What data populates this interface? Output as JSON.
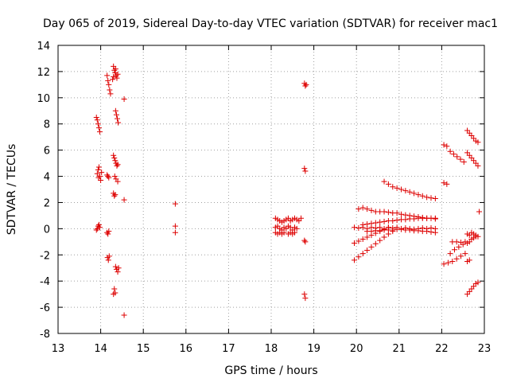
{
  "chart_data": {
    "type": "scatter",
    "title": "Day 065 of 2019, Sidereal Day-to-day VTEC variation (SDTVAR) for receiver mac1",
    "xlabel": "GPS time / hours",
    "ylabel": "SDTVAR / TECUs",
    "xlim": [
      13,
      23
    ],
    "ylim": [
      -8,
      14
    ],
    "xticks": [
      13,
      14,
      15,
      16,
      17,
      18,
      19,
      20,
      21,
      22,
      23
    ],
    "yticks": [
      -8,
      -6,
      -4,
      -2,
      0,
      2,
      4,
      6,
      8,
      10,
      12,
      14
    ],
    "grid": true,
    "marker": "+",
    "marker_color": "#dd0000",
    "series": [
      {
        "name": "SDTVAR",
        "points": [
          [
            13.9,
            8.5
          ],
          [
            13.92,
            8.3
          ],
          [
            13.94,
            8.0
          ],
          [
            13.96,
            7.7
          ],
          [
            13.98,
            7.4
          ],
          [
            13.92,
            4.2
          ],
          [
            13.94,
            4.5
          ],
          [
            13.96,
            4.7
          ],
          [
            13.98,
            4.0
          ],
          [
            14.0,
            3.7
          ],
          [
            13.95,
            3.9
          ],
          [
            14.02,
            4.3
          ],
          [
            13.9,
            -0.1
          ],
          [
            13.92,
            0.0
          ],
          [
            13.94,
            0.2
          ],
          [
            13.96,
            0.3
          ],
          [
            13.98,
            0.1
          ],
          [
            14.15,
            11.7
          ],
          [
            14.17,
            11.3
          ],
          [
            14.19,
            11.0
          ],
          [
            14.21,
            10.6
          ],
          [
            14.23,
            10.3
          ],
          [
            14.15,
            4.1
          ],
          [
            14.17,
            4.0
          ],
          [
            14.19,
            3.9
          ],
          [
            14.15,
            -0.3
          ],
          [
            14.17,
            -0.4
          ],
          [
            14.19,
            -0.2
          ],
          [
            14.16,
            -2.2
          ],
          [
            14.18,
            -2.4
          ],
          [
            14.2,
            -2.1
          ],
          [
            14.3,
            12.4
          ],
          [
            14.32,
            12.1
          ],
          [
            14.34,
            11.9
          ],
          [
            14.36,
            11.7
          ],
          [
            14.38,
            11.5
          ],
          [
            14.4,
            11.8
          ],
          [
            14.3,
            11.6
          ],
          [
            14.35,
            12.2
          ],
          [
            14.28,
            11.4
          ],
          [
            14.35,
            9.0
          ],
          [
            14.37,
            8.7
          ],
          [
            14.39,
            8.4
          ],
          [
            14.41,
            8.1
          ],
          [
            14.3,
            5.6
          ],
          [
            14.32,
            5.4
          ],
          [
            14.34,
            5.2
          ],
          [
            14.36,
            5.0
          ],
          [
            14.38,
            4.8
          ],
          [
            14.4,
            4.9
          ],
          [
            14.33,
            4.0
          ],
          [
            14.36,
            3.8
          ],
          [
            14.4,
            3.6
          ],
          [
            14.3,
            2.7
          ],
          [
            14.32,
            2.5
          ],
          [
            14.34,
            2.6
          ],
          [
            14.35,
            -2.9
          ],
          [
            14.37,
            -3.1
          ],
          [
            14.4,
            -3.3
          ],
          [
            14.42,
            -3.0
          ],
          [
            14.32,
            -4.6
          ],
          [
            14.34,
            -4.9
          ],
          [
            14.3,
            -5.0
          ],
          [
            14.55,
            9.9
          ],
          [
            14.55,
            2.2
          ],
          [
            14.55,
            -6.6
          ],
          [
            15.75,
            1.9
          ],
          [
            15.75,
            0.2
          ],
          [
            15.75,
            -0.3
          ],
          [
            18.1,
            0.8
          ],
          [
            18.15,
            0.7
          ],
          [
            18.2,
            0.6
          ],
          [
            18.25,
            0.5
          ],
          [
            18.3,
            0.6
          ],
          [
            18.35,
            0.7
          ],
          [
            18.4,
            0.8
          ],
          [
            18.45,
            0.6
          ],
          [
            18.5,
            0.7
          ],
          [
            18.55,
            0.8
          ],
          [
            18.6,
            0.7
          ],
          [
            18.65,
            0.6
          ],
          [
            18.7,
            0.8
          ],
          [
            18.1,
            0.1
          ],
          [
            18.15,
            0.2
          ],
          [
            18.2,
            0.0
          ],
          [
            18.25,
            -0.1
          ],
          [
            18.3,
            0.1
          ],
          [
            18.35,
            0.0
          ],
          [
            18.4,
            0.2
          ],
          [
            18.45,
            0.1
          ],
          [
            18.5,
            -0.1
          ],
          [
            18.55,
            0.1
          ],
          [
            18.6,
            0.0
          ],
          [
            18.1,
            -0.3
          ],
          [
            18.15,
            -0.4
          ],
          [
            18.2,
            -0.3
          ],
          [
            18.25,
            -0.4
          ],
          [
            18.3,
            -0.3
          ],
          [
            18.4,
            -0.4
          ],
          [
            18.45,
            -0.3
          ],
          [
            18.5,
            -0.4
          ],
          [
            18.55,
            -0.3
          ],
          [
            18.78,
            11.1
          ],
          [
            18.8,
            10.9
          ],
          [
            18.82,
            11.0
          ],
          [
            18.78,
            4.6
          ],
          [
            18.8,
            4.4
          ],
          [
            18.78,
            -0.9
          ],
          [
            18.8,
            -1.0
          ],
          [
            18.78,
            -5.0
          ],
          [
            18.8,
            -5.3
          ],
          [
            19.95,
            0.1
          ],
          [
            20.05,
            0.05
          ],
          [
            20.15,
            0.1
          ],
          [
            20.25,
            0.0
          ],
          [
            20.35,
            0.1
          ],
          [
            20.45,
            0.05
          ],
          [
            20.55,
            0.1
          ],
          [
            20.65,
            0.0
          ],
          [
            20.75,
            0.1
          ],
          [
            20.85,
            0.05
          ],
          [
            20.95,
            0.1
          ],
          [
            21.05,
            0.0
          ],
          [
            21.15,
            0.05
          ],
          [
            21.25,
            0.0
          ],
          [
            21.35,
            -0.05
          ],
          [
            21.45,
            0.0
          ],
          [
            21.55,
            0.05
          ],
          [
            21.65,
            0.0
          ],
          [
            21.75,
            0.05
          ],
          [
            21.85,
            0.0
          ],
          [
            20.05,
            1.5
          ],
          [
            20.15,
            1.6
          ],
          [
            20.25,
            1.5
          ],
          [
            20.35,
            1.4
          ],
          [
            20.45,
            1.3
          ],
          [
            20.55,
            1.3
          ],
          [
            20.65,
            1.3
          ],
          [
            20.75,
            1.25
          ],
          [
            20.85,
            1.2
          ],
          [
            20.95,
            1.2
          ],
          [
            21.05,
            1.1
          ],
          [
            21.15,
            1.05
          ],
          [
            21.25,
            1.0
          ],
          [
            21.35,
            0.95
          ],
          [
            21.45,
            0.9
          ],
          [
            21.55,
            0.85
          ],
          [
            21.65,
            0.8
          ],
          [
            21.75,
            0.8
          ],
          [
            21.85,
            0.75
          ],
          [
            20.15,
            0.3
          ],
          [
            20.25,
            0.35
          ],
          [
            20.35,
            0.4
          ],
          [
            20.45,
            0.45
          ],
          [
            20.55,
            0.5
          ],
          [
            20.65,
            0.55
          ],
          [
            20.75,
            0.6
          ],
          [
            20.85,
            0.6
          ],
          [
            20.95,
            0.65
          ],
          [
            21.05,
            0.7
          ],
          [
            21.15,
            0.7
          ],
          [
            21.25,
            0.75
          ],
          [
            21.35,
            0.75
          ],
          [
            21.45,
            0.8
          ],
          [
            21.55,
            0.8
          ],
          [
            21.65,
            0.8
          ],
          [
            21.75,
            0.8
          ],
          [
            21.85,
            0.8
          ],
          [
            20.25,
            -0.2
          ],
          [
            20.35,
            -0.2
          ],
          [
            20.45,
            -0.15
          ],
          [
            20.55,
            -0.15
          ],
          [
            20.65,
            -0.1
          ],
          [
            20.75,
            -0.1
          ],
          [
            20.85,
            -0.1
          ],
          [
            20.95,
            -0.05
          ],
          [
            21.05,
            -0.05
          ],
          [
            21.15,
            -0.1
          ],
          [
            21.25,
            -0.1
          ],
          [
            21.35,
            -0.15
          ],
          [
            21.45,
            -0.15
          ],
          [
            21.55,
            -0.2
          ],
          [
            21.65,
            -0.2
          ],
          [
            21.75,
            -0.25
          ],
          [
            21.85,
            -0.3
          ],
          [
            19.95,
            -1.1
          ],
          [
            20.05,
            -0.95
          ],
          [
            20.15,
            -0.8
          ],
          [
            20.25,
            -0.65
          ],
          [
            20.35,
            -0.5
          ],
          [
            20.45,
            -0.35
          ],
          [
            20.55,
            -0.2
          ],
          [
            20.65,
            -0.05
          ],
          [
            20.75,
            0.1
          ],
          [
            19.95,
            -2.4
          ],
          [
            20.05,
            -2.15
          ],
          [
            20.15,
            -1.9
          ],
          [
            20.25,
            -1.65
          ],
          [
            20.35,
            -1.4
          ],
          [
            20.45,
            -1.15
          ],
          [
            20.55,
            -0.9
          ],
          [
            20.65,
            -0.65
          ],
          [
            20.75,
            -0.4
          ],
          [
            20.85,
            -0.2
          ],
          [
            20.65,
            3.6
          ],
          [
            20.75,
            3.4
          ],
          [
            20.85,
            3.2
          ],
          [
            20.95,
            3.1
          ],
          [
            21.05,
            3.0
          ],
          [
            21.15,
            2.9
          ],
          [
            21.25,
            2.8
          ],
          [
            21.35,
            2.7
          ],
          [
            21.45,
            2.6
          ],
          [
            21.55,
            2.5
          ],
          [
            21.65,
            2.4
          ],
          [
            21.75,
            2.35
          ],
          [
            21.85,
            2.3
          ],
          [
            22.05,
            6.4
          ],
          [
            22.12,
            6.3
          ],
          [
            22.05,
            3.5
          ],
          [
            22.12,
            3.4
          ],
          [
            22.2,
            5.9
          ],
          [
            22.28,
            5.7
          ],
          [
            22.36,
            5.5
          ],
          [
            22.44,
            5.3
          ],
          [
            22.52,
            5.1
          ],
          [
            22.05,
            -2.7
          ],
          [
            22.15,
            -2.6
          ],
          [
            22.25,
            -2.5
          ],
          [
            22.35,
            -2.3
          ],
          [
            22.45,
            -2.1
          ],
          [
            22.55,
            -1.9
          ],
          [
            22.2,
            -1.9
          ],
          [
            22.3,
            -1.6
          ],
          [
            22.4,
            -1.4
          ],
          [
            22.5,
            -1.2
          ],
          [
            22.25,
            -1.0
          ],
          [
            22.35,
            -1.0
          ],
          [
            22.45,
            -1.05
          ],
          [
            22.55,
            -1.0
          ],
          [
            22.6,
            7.5
          ],
          [
            22.65,
            7.3
          ],
          [
            22.7,
            7.1
          ],
          [
            22.75,
            6.9
          ],
          [
            22.8,
            6.7
          ],
          [
            22.85,
            6.6
          ],
          [
            22.6,
            5.8
          ],
          [
            22.65,
            5.6
          ],
          [
            22.7,
            5.4
          ],
          [
            22.75,
            5.2
          ],
          [
            22.8,
            5.0
          ],
          [
            22.85,
            4.8
          ],
          [
            22.6,
            -0.4
          ],
          [
            22.65,
            -0.5
          ],
          [
            22.7,
            -0.3
          ],
          [
            22.75,
            -0.4
          ],
          [
            22.8,
            -0.5
          ],
          [
            22.85,
            -0.6
          ],
          [
            22.6,
            -1.1
          ],
          [
            22.65,
            -1.0
          ],
          [
            22.7,
            -0.8
          ],
          [
            22.75,
            -0.7
          ],
          [
            22.8,
            -0.6
          ],
          [
            22.6,
            -2.5
          ],
          [
            22.65,
            -2.4
          ],
          [
            22.6,
            -5.0
          ],
          [
            22.65,
            -4.8
          ],
          [
            22.7,
            -4.6
          ],
          [
            22.75,
            -4.4
          ],
          [
            22.8,
            -4.2
          ],
          [
            22.85,
            -4.1
          ],
          [
            22.88,
            1.3
          ]
        ]
      }
    ]
  }
}
